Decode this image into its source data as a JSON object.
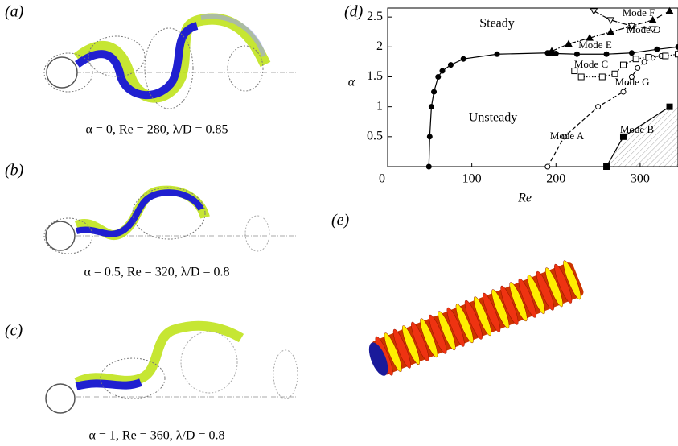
{
  "panels": [
    {
      "label": "(a)",
      "caption": "α = 0, Re = 280, λ/D = 0.85"
    },
    {
      "label": "(b)",
      "caption": "α = 0.5, Re = 320, λ/D = 0.8"
    },
    {
      "label": "(c)",
      "caption": "α = 1, Re = 360, λ/D = 0.8"
    },
    {
      "label": "(d)"
    },
    {
      "label": "(e)"
    }
  ],
  "chart_data": {
    "type": "line",
    "xlabel": "Re",
    "ylabel": "α",
    "xlim": [
      0,
      345
    ],
    "ylim": [
      0,
      2.65
    ],
    "xticks": [
      0,
      100,
      200,
      300
    ],
    "yticks": [
      0.5,
      1.0,
      1.5,
      2.0,
      2.5
    ],
    "annotations": [
      "Steady",
      "Unsteady",
      "Mode A",
      "Mode B",
      "Mode C",
      "Mode D",
      "Mode E",
      "Mode F",
      "Mode G"
    ],
    "series": [
      {
        "color": "#000",
        "line": "solid",
        "marker": "circle-filled",
        "x": [
          49,
          50,
          52,
          55,
          60,
          65,
          75,
          90,
          130,
          190,
          193,
          197,
          200,
          225,
          260,
          290,
          320,
          345
        ],
        "values": [
          0,
          0.5,
          1.0,
          1.25,
          1.5,
          1.6,
          1.7,
          1.8,
          1.88,
          1.9,
          1.9,
          1.89,
          1.89,
          1.88,
          1.88,
          1.9,
          1.96,
          2.0
        ]
      },
      {
        "color": "#000",
        "line": "dashed",
        "marker": "circle-open",
        "x": [
          190,
          210,
          250,
          280,
          290,
          297,
          305,
          315,
          325
        ],
        "values": [
          0,
          0.5,
          1.0,
          1.25,
          1.5,
          1.65,
          1.75,
          1.82,
          1.85
        ]
      },
      {
        "color": "#000",
        "line": "solid",
        "marker": "square-filled",
        "x": [
          260,
          280,
          335
        ],
        "values": [
          0,
          0.5,
          1.0
        ]
      },
      {
        "color": "#000",
        "line": "dotted",
        "marker": "square-open",
        "x": [
          222,
          230,
          255,
          270,
          280,
          295,
          310,
          330,
          345
        ],
        "values": [
          1.6,
          1.5,
          1.5,
          1.55,
          1.7,
          1.8,
          1.83,
          1.85,
          1.88
        ]
      },
      {
        "color": "#000",
        "line": "dashdot",
        "marker": "triangle-filled",
        "x": [
          195,
          215,
          240,
          265,
          290,
          315,
          335
        ],
        "values": [
          1.93,
          2.05,
          2.15,
          2.25,
          2.35,
          2.45,
          2.6
        ]
      },
      {
        "color": "#000",
        "line": "dashdot",
        "marker": "triangle-open",
        "x": [
          245,
          265,
          290,
          315
        ],
        "values": [
          2.6,
          2.45,
          2.35,
          2.3
        ]
      }
    ]
  }
}
